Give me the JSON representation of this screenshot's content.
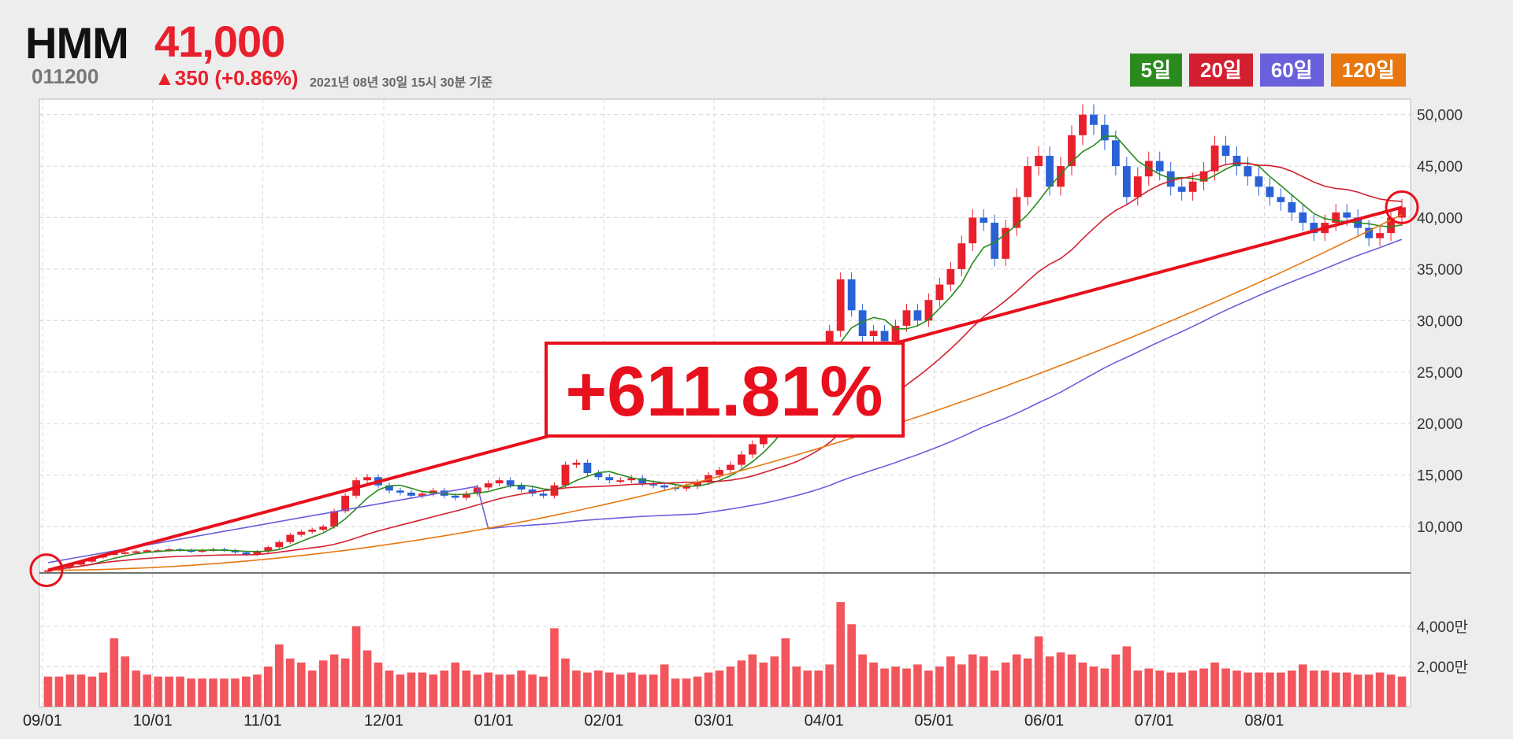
{
  "header": {
    "name": "HMM",
    "price": "41,000",
    "code": "011200",
    "change": "▲350 (+0.86%)",
    "asof": "2021년 08년 30일 15시 30분 기준"
  },
  "legend": [
    {
      "label": "5일",
      "color": "#2a8a1e"
    },
    {
      "label": "20일",
      "color": "#d32030"
    },
    {
      "label": "60일",
      "color": "#6a60dc"
    },
    {
      "label": "120일",
      "color": "#e8770e"
    }
  ],
  "annotation": {
    "label": "+611.81%",
    "start_value": 5760,
    "end_value": 41000
  },
  "chart_data": {
    "type": "candlestick",
    "title": "",
    "x_ticks": [
      "09/01",
      "10/01",
      "11/01",
      "12/01",
      "01/01",
      "02/01",
      "03/01",
      "04/01",
      "05/01",
      "06/01",
      "07/01",
      "08/01"
    ],
    "price_axis": {
      "ylim": [
        5500,
        51500
      ],
      "ticks": [
        "10,000",
        "15,000",
        "20,000",
        "25,000",
        "30,000",
        "35,000",
        "40,000",
        "45,000",
        "50,000"
      ]
    },
    "volume_axis": {
      "ticks": [
        "2,000만",
        "4,000만"
      ]
    },
    "close_series": [
      5760,
      6000,
      6300,
      6600,
      7000,
      7300,
      7400,
      7500,
      7600,
      7700,
      7700,
      7800,
      7700,
      7600,
      7700,
      7800,
      7700,
      7500,
      7300,
      7600,
      8000,
      8500,
      9200,
      9500,
      9700,
      10000,
      11500,
      13000,
      14500,
      14800,
      14000,
      13500,
      13300,
      13000,
      13200,
      13500,
      13000,
      12800,
      13200,
      13800,
      14200,
      14500,
      14000,
      13600,
      13200,
      13000,
      14000,
      16000,
      16200,
      15200,
      14800,
      14500,
      14500,
      14700,
      14200,
      14000,
      13800,
      13700,
      13900,
      14300,
      15000,
      15500,
      16000,
      17000,
      18000,
      19500,
      21000,
      22500,
      24000,
      25500,
      27000,
      29000,
      34000,
      31000,
      28500,
      29000,
      28000,
      29500,
      31000,
      30000,
      32000,
      33500,
      35000,
      37500,
      40000,
      39500,
      36000,
      39000,
      42000,
      45000,
      46000,
      43000,
      45000,
      48000,
      50000,
      49000,
      47500,
      45000,
      42000,
      44000,
      45500,
      44500,
      43000,
      42500,
      43500,
      44500,
      47000,
      46000,
      45000,
      44000,
      43000,
      42000,
      41500,
      40500,
      39500,
      38500,
      39500,
      40500,
      40000,
      39000,
      38000,
      38500,
      40000,
      41000
    ],
    "volume_series_man": [
      1500,
      1500,
      1600,
      1600,
      1500,
      1700,
      3400,
      2500,
      1800,
      1600,
      1500,
      1500,
      1500,
      1400,
      1400,
      1400,
      1400,
      1400,
      1500,
      1600,
      2000,
      3100,
      2400,
      2200,
      1800,
      2300,
      2600,
      2400,
      4000,
      2800,
      2200,
      1800,
      1600,
      1700,
      1700,
      1600,
      1800,
      2200,
      1800,
      1600,
      1700,
      1600,
      1600,
      1800,
      1600,
      1500,
      3900,
      2400,
      1800,
      1700,
      1800,
      1700,
      1600,
      1700,
      1600,
      1600,
      2100,
      1400,
      1400,
      1500,
      1700,
      1800,
      2000,
      2300,
      2600,
      2200,
      2500,
      3400,
      2000,
      1800,
      1800,
      2100,
      5200,
      4100,
      2600,
      2200,
      1900,
      2000,
      1900,
      2100,
      1800,
      2000,
      2500,
      2100,
      2600,
      2500,
      1800,
      2200,
      2600,
      2400,
      3500,
      2500,
      2700,
      2600,
      2200,
      2000,
      1900,
      2600,
      3000,
      1800,
      1900,
      1800,
      1700,
      1700,
      1800,
      1900,
      2200,
      1900,
      1800,
      1700,
      1700,
      1700,
      1700,
      1800,
      2100,
      1800,
      1800,
      1700,
      1700,
      1600,
      1600,
      1700,
      1600,
      1500
    ]
  }
}
